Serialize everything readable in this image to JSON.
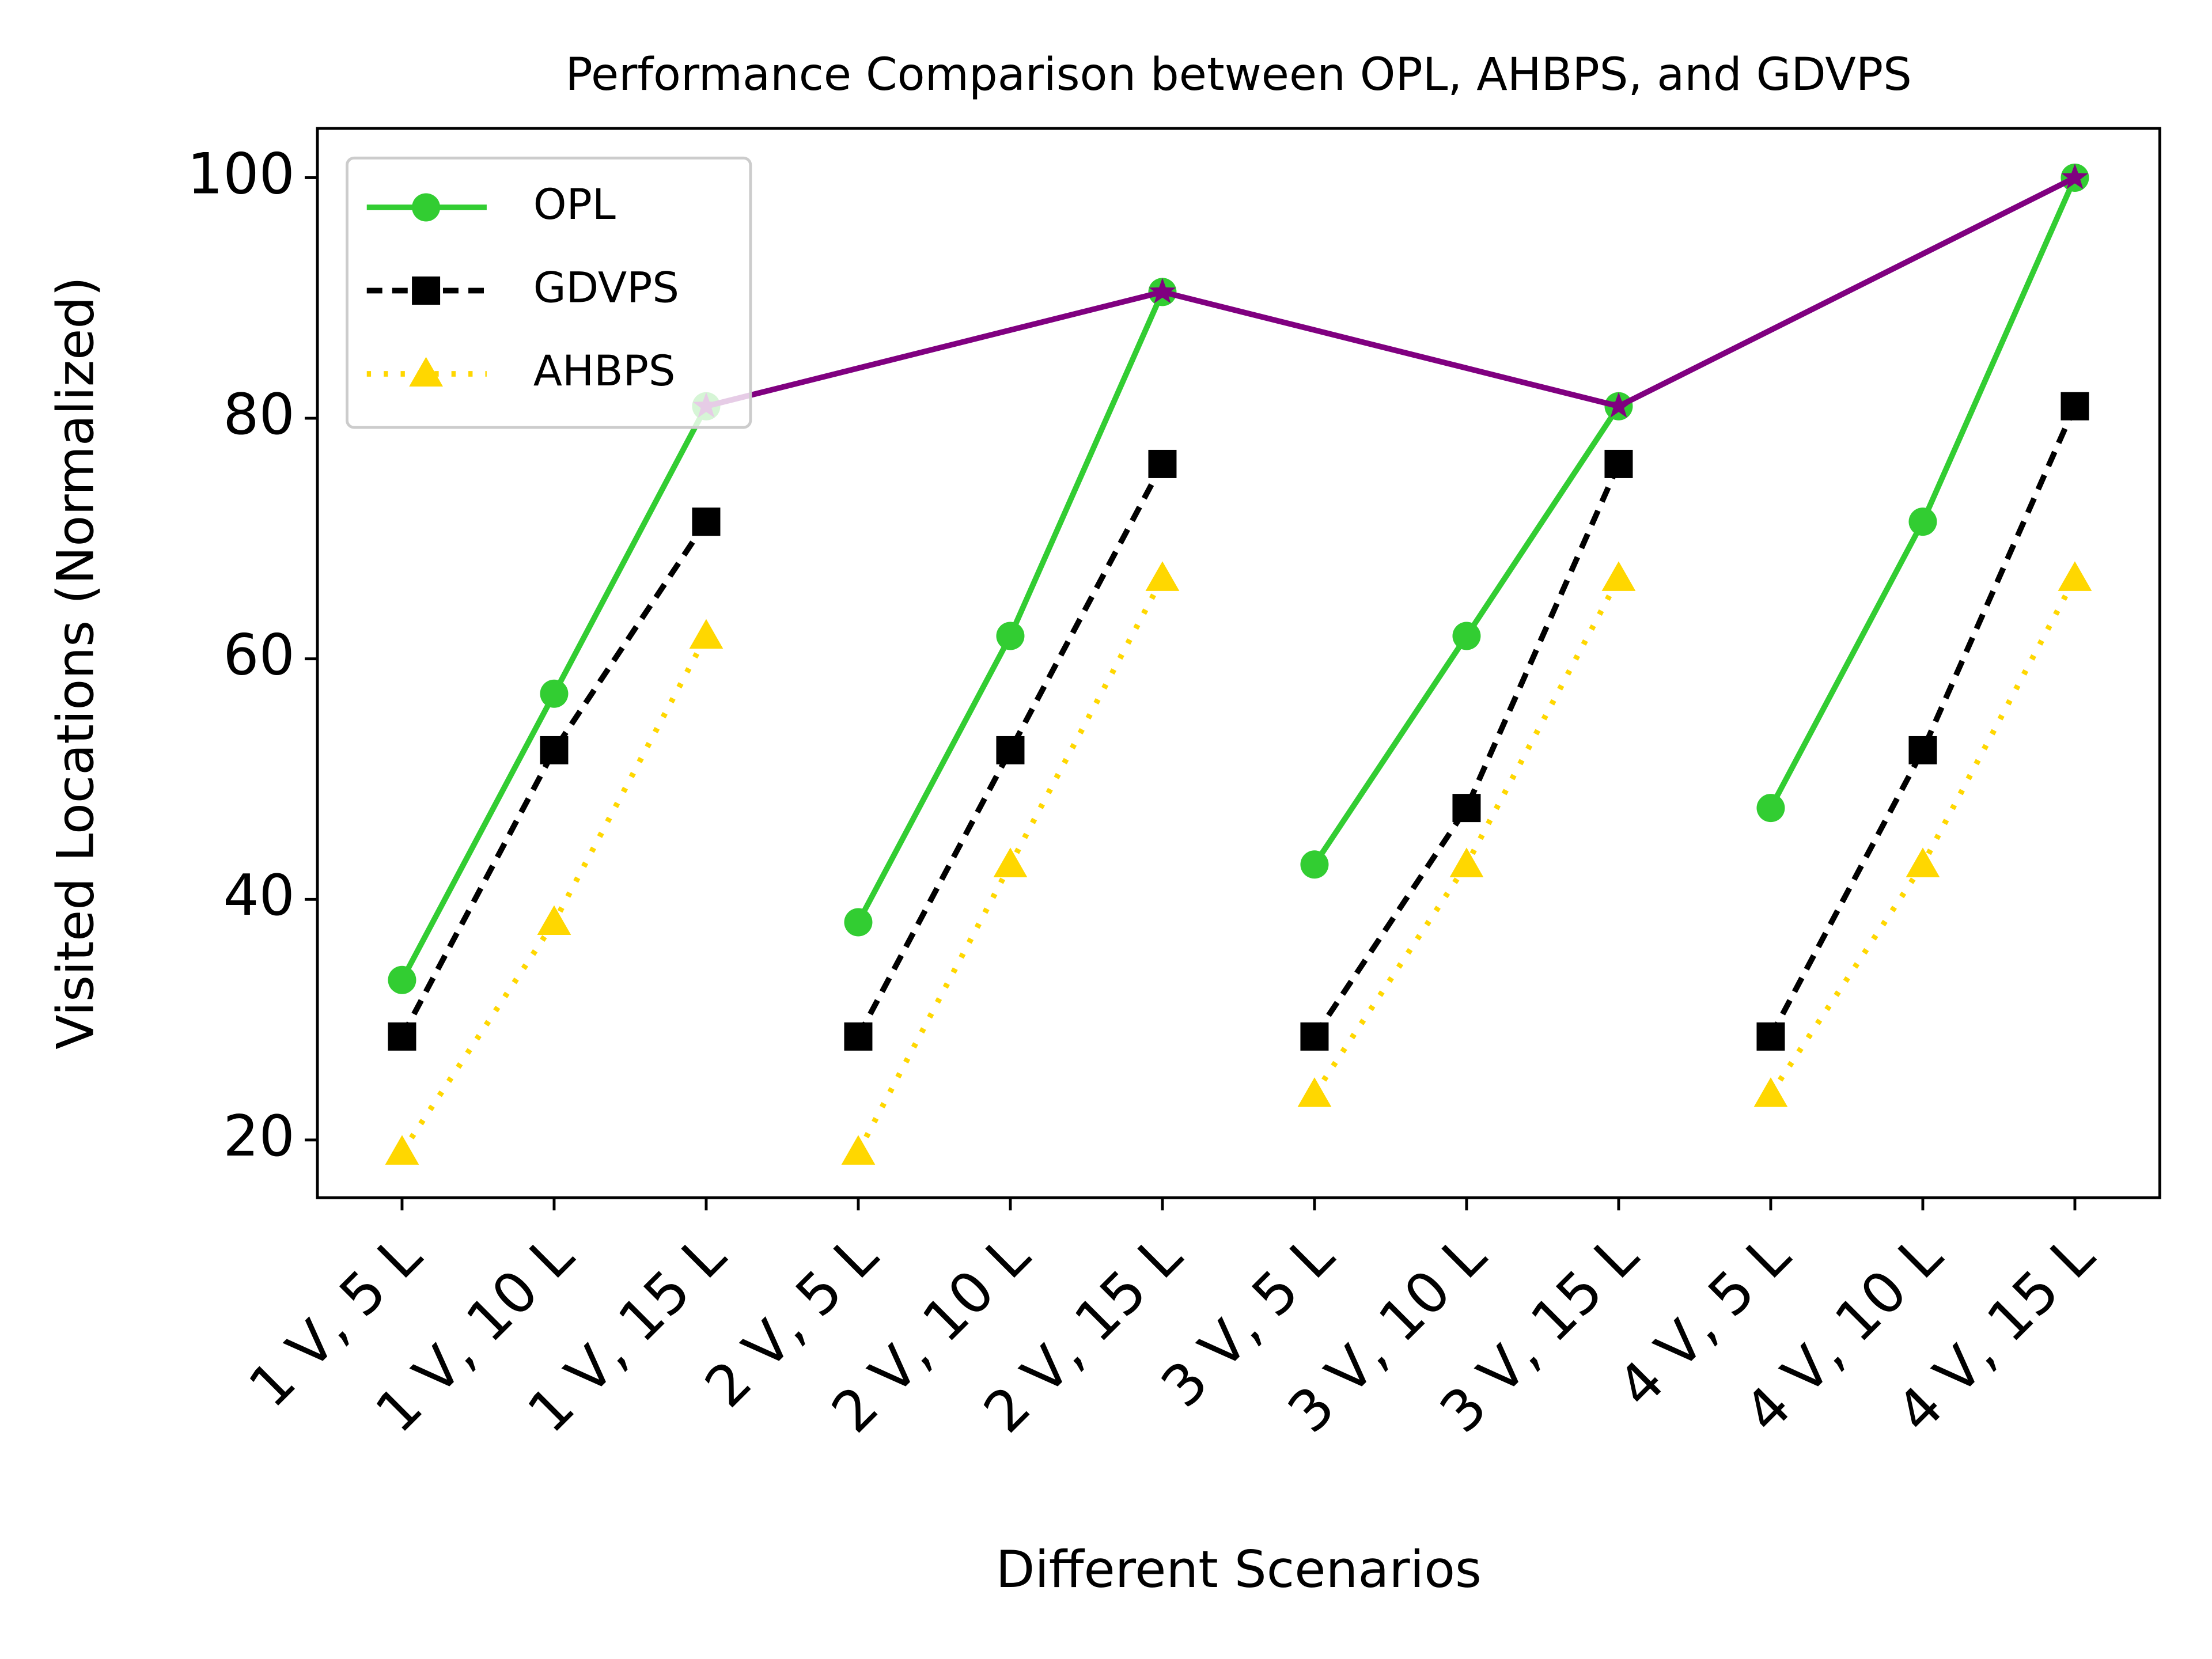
{
  "chart_data": {
    "type": "line",
    "title": "Performance Comparison between OPL, AHBPS, and GDVPS",
    "xlabel": "Different Scenarios",
    "ylabel": "Visited Locations (Normalized)",
    "categories": [
      "1 V, 5 L",
      "1 V, 10 L",
      "1 V, 15 L",
      "2 V, 5 L",
      "2 V, 10 L",
      "2 V, 15 L",
      "3 V, 5 L",
      "3 V, 10 L",
      "3 V, 15 L",
      "4 V, 5 L",
      "4 V, 10 L",
      "4 V, 15 L"
    ],
    "series": [
      {
        "name": "OPL",
        "color": "#32cd32",
        "style": "solid",
        "marker": "circle",
        "values": [
          33.3,
          57.1,
          81,
          38.1,
          61.9,
          90.5,
          42.9,
          61.9,
          81,
          47.6,
          71.4,
          100
        ]
      },
      {
        "name": "GDVPS",
        "color": "#000000",
        "style": "dashed",
        "marker": "square",
        "values": [
          28.6,
          52.4,
          71.4,
          28.6,
          52.4,
          76.2,
          28.6,
          47.6,
          76.2,
          28.6,
          52.4,
          81
        ]
      },
      {
        "name": "AHBPS",
        "color": "#ffd700",
        "style": "dotted",
        "marker": "triangle",
        "values": [
          19,
          38.1,
          61.9,
          19,
          42.9,
          66.7,
          23.8,
          42.9,
          66.7,
          23.8,
          42.9,
          66.7
        ]
      },
      {
        "color": "#800080",
        "style": "solid",
        "marker": "star",
        "connect_gaps": true,
        "values": [
          null,
          null,
          81,
          null,
          null,
          90.5,
          null,
          null,
          81,
          null,
          null,
          100
        ]
      }
    ],
    "ylim": [
      15.2,
      104.1
    ],
    "yticks": [
      20,
      40,
      60,
      80,
      100
    ],
    "legend": "upper left"
  }
}
